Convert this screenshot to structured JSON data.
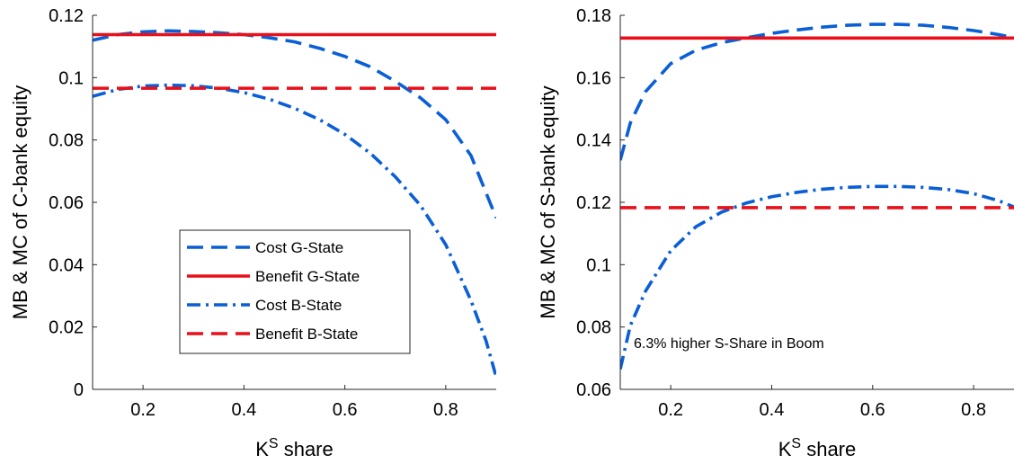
{
  "colors": {
    "cost": "#0a5fd6",
    "benefit": "#e8101a",
    "axis": "#262626"
  },
  "chart_data": [
    {
      "type": "line",
      "xlabel_main": "K",
      "xlabel_sup": "S",
      "xlabel_rest": " share",
      "ylabel": "MB & MC of C-bank equity",
      "xlim": [
        0.1,
        0.9
      ],
      "ylim": [
        0,
        0.12
      ],
      "xticks": [
        0.2,
        0.4,
        0.6,
        0.8
      ],
      "xtick_labels": [
        "0.2",
        "0.4",
        "0.6",
        "0.8"
      ],
      "yticks": [
        0,
        0.02,
        0.04,
        0.06,
        0.08,
        0.1,
        0.12
      ],
      "ytick_labels": [
        "0",
        "0.02",
        "0.04",
        "0.06",
        "0.08",
        "0.1",
        "0.12"
      ],
      "grid": false,
      "legend_placement": "lower-center",
      "annotation": "",
      "series": [
        {
          "name": "Cost G-State",
          "style": "dashed",
          "color_key": "cost",
          "x": [
            0.1,
            0.15,
            0.2,
            0.25,
            0.3,
            0.35,
            0.4,
            0.45,
            0.5,
            0.55,
            0.6,
            0.65,
            0.7,
            0.75,
            0.8,
            0.85,
            0.9
          ],
          "y": [
            0.112,
            0.1138,
            0.1147,
            0.115,
            0.1148,
            0.1144,
            0.1138,
            0.1128,
            0.1115,
            0.1094,
            0.1068,
            0.1035,
            0.0988,
            0.0935,
            0.0865,
            0.075,
            0.055
          ]
        },
        {
          "name": "Benefit G-State",
          "style": "solid",
          "color_key": "benefit",
          "x": [
            0.1,
            0.9
          ],
          "y": [
            0.1138,
            0.1138
          ]
        },
        {
          "name": "Cost B-State",
          "style": "dashdot",
          "color_key": "cost",
          "x": [
            0.1,
            0.15,
            0.2,
            0.25,
            0.3,
            0.35,
            0.4,
            0.45,
            0.5,
            0.55,
            0.6,
            0.65,
            0.7,
            0.75,
            0.8,
            0.85,
            0.88,
            0.9
          ],
          "y": [
            0.094,
            0.0962,
            0.0973,
            0.0976,
            0.0974,
            0.0966,
            0.0952,
            0.0931,
            0.0902,
            0.0865,
            0.0818,
            0.0758,
            0.0682,
            0.059,
            0.0464,
            0.0285,
            0.0155,
            0.004
          ]
        },
        {
          "name": "Benefit B-State",
          "style": "dashed",
          "color_key": "benefit",
          "x": [
            0.1,
            0.9
          ],
          "y": [
            0.0966,
            0.0966
          ]
        }
      ]
    },
    {
      "type": "line",
      "xlabel_main": "K",
      "xlabel_sup": "S",
      "xlabel_rest": " share",
      "ylabel": "MB & MC of S-bank equity",
      "xlim": [
        0.1,
        0.88
      ],
      "ylim": [
        0.06,
        0.18
      ],
      "xticks": [
        0.2,
        0.4,
        0.6,
        0.8
      ],
      "xtick_labels": [
        "0.2",
        "0.4",
        "0.6",
        "0.8"
      ],
      "yticks": [
        0.06,
        0.08,
        0.1,
        0.12,
        0.14,
        0.16,
        0.18
      ],
      "ytick_labels": [
        "0.06",
        "0.08",
        "0.1",
        "0.12",
        "0.14",
        "0.16",
        "0.18"
      ],
      "grid": false,
      "annotation": "6.3% higher S-Share in Boom",
      "series": [
        {
          "style": "dashed",
          "color_key": "cost",
          "x": [
            0.1,
            0.12,
            0.15,
            0.2,
            0.25,
            0.3,
            0.35,
            0.4,
            0.45,
            0.5,
            0.55,
            0.6,
            0.65,
            0.7,
            0.75,
            0.8,
            0.85,
            0.88
          ],
          "y": [
            0.1335,
            0.1455,
            0.1555,
            0.1645,
            0.1688,
            0.1712,
            0.1728,
            0.1742,
            0.1753,
            0.1762,
            0.1768,
            0.1771,
            0.1771,
            0.1768,
            0.1761,
            0.1751,
            0.1738,
            0.1728
          ]
        },
        {
          "style": "solid",
          "color_key": "benefit",
          "x": [
            0.1,
            0.88
          ],
          "y": [
            0.1727,
            0.1727
          ]
        },
        {
          "style": "dashdot",
          "color_key": "cost",
          "x": [
            0.1,
            0.12,
            0.15,
            0.2,
            0.25,
            0.3,
            0.35,
            0.4,
            0.45,
            0.5,
            0.55,
            0.6,
            0.65,
            0.7,
            0.75,
            0.8,
            0.85,
            0.88
          ],
          "y": [
            0.0665,
            0.0805,
            0.0915,
            0.1045,
            0.1122,
            0.1168,
            0.1198,
            0.1218,
            0.1232,
            0.1242,
            0.1248,
            0.1251,
            0.1251,
            0.1248,
            0.1241,
            0.1228,
            0.1205,
            0.1185
          ]
        },
        {
          "style": "dashed",
          "color_key": "benefit",
          "x": [
            0.1,
            0.88
          ],
          "y": [
            0.1183,
            0.1183
          ]
        }
      ]
    }
  ]
}
